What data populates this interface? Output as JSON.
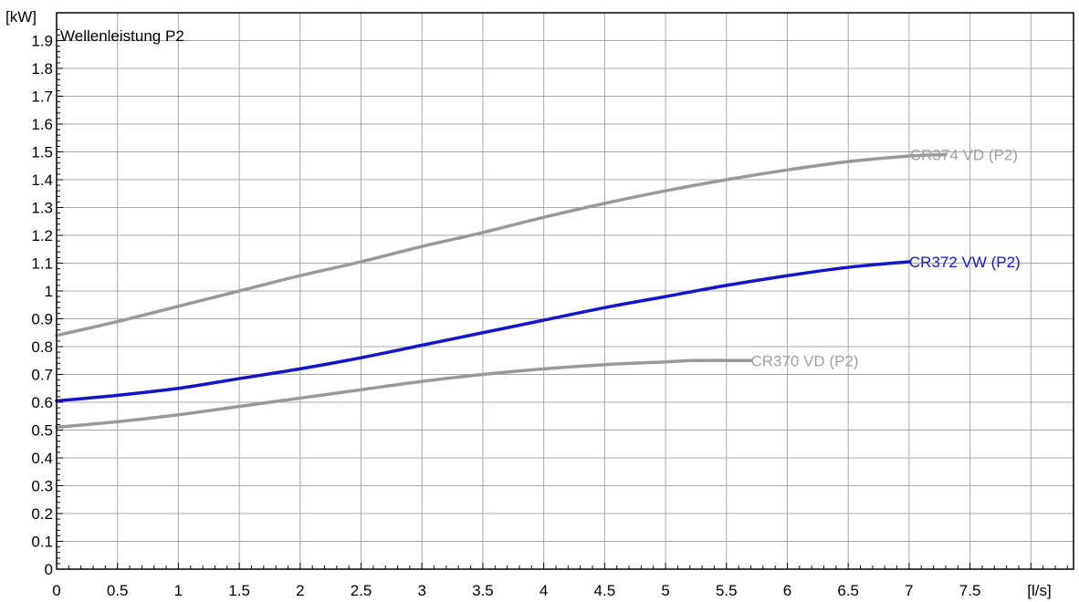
{
  "chart_data": {
    "type": "line",
    "title": "Wellenleistung P2",
    "xlabel": "[l/s]",
    "ylabel": "[kW]",
    "xlim": [
      0,
      8.35
    ],
    "ylim": [
      0,
      2.0
    ],
    "grid": true,
    "x_ticks": [
      0,
      0.5,
      1,
      1.5,
      2,
      2.5,
      3,
      3.5,
      4,
      4.5,
      5,
      5.5,
      6,
      6.5,
      7,
      7.5
    ],
    "x_tick_labels": [
      "0",
      "0.5",
      "1",
      "1.5",
      "2",
      "2.5",
      "3",
      "3.5",
      "4",
      "4.5",
      "5",
      "5.5",
      "6",
      "6.5",
      "7",
      "7.5"
    ],
    "y_ticks": [
      0,
      0.1,
      0.2,
      0.3,
      0.4,
      0.5,
      0.6,
      0.7,
      0.8,
      0.9,
      1.0,
      1.1,
      1.2,
      1.3,
      1.4,
      1.5,
      1.6,
      1.7,
      1.8,
      1.9
    ],
    "y_tick_labels": [
      "0",
      "0.1",
      "0.2",
      "0.3",
      "0.4",
      "0.5",
      "0.6",
      "0.7",
      "0.8",
      "0.9",
      "1",
      "1.1",
      "1.2",
      "1.3",
      "1.4",
      "1.5",
      "1.6",
      "1.7",
      "1.8",
      "1.9"
    ],
    "series": [
      {
        "name": "CR374 VD (P2)",
        "color": "#999999",
        "label_color": "#a0a0a0",
        "x": [
          0,
          0.5,
          1,
          1.5,
          2,
          2.5,
          3,
          3.5,
          4,
          4.5,
          5,
          5.5,
          6,
          6.5,
          7,
          7.3
        ],
        "y": [
          0.84,
          0.89,
          0.945,
          1.0,
          1.055,
          1.105,
          1.16,
          1.21,
          1.265,
          1.315,
          1.36,
          1.4,
          1.435,
          1.465,
          1.485,
          1.49
        ]
      },
      {
        "name": "CR372 VW (P2)",
        "color": "#1414c8",
        "label_color": "#1414dc",
        "x": [
          0,
          0.5,
          1,
          1.5,
          2,
          2.5,
          3,
          3.5,
          4,
          4.5,
          5,
          5.5,
          6,
          6.5,
          7
        ],
        "y": [
          0.605,
          0.625,
          0.65,
          0.685,
          0.72,
          0.76,
          0.805,
          0.85,
          0.895,
          0.94,
          0.98,
          1.02,
          1.055,
          1.085,
          1.105
        ]
      },
      {
        "name": "CR370 VD (P2)",
        "color": "#999999",
        "label_color": "#a0a0a0",
        "x": [
          0,
          0.5,
          1,
          1.5,
          2,
          2.5,
          3,
          3.5,
          4,
          4.5,
          5,
          5.25,
          5.7
        ],
        "y": [
          0.51,
          0.53,
          0.555,
          0.585,
          0.615,
          0.645,
          0.675,
          0.7,
          0.72,
          0.735,
          0.745,
          0.75,
          0.75
        ]
      }
    ]
  }
}
